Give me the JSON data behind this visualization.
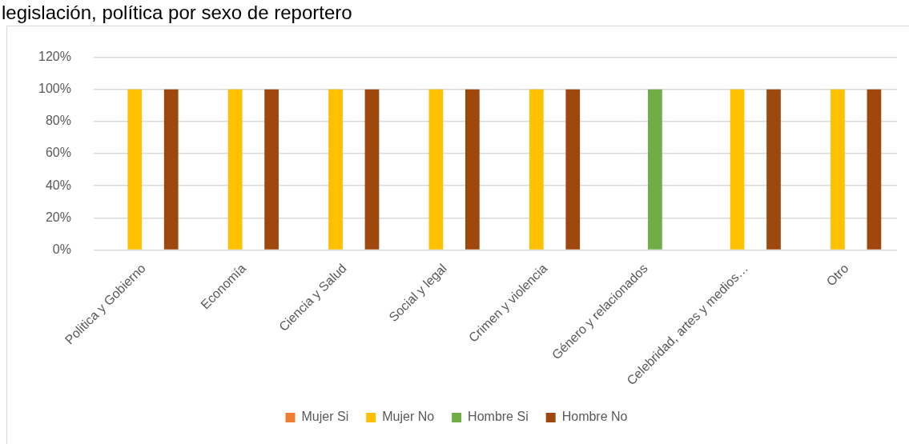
{
  "chart_data": {
    "type": "bar",
    "title": "legislación, política por sexo de reportero",
    "categories": [
      "Politica y Gobierno",
      "Economía",
      "Ciencia y Salud",
      "Social y legal",
      "Crimen y violencia",
      "Género y relacionados",
      "Celebridad, artes y medios…",
      "Otro"
    ],
    "series": [
      {
        "name": "Mujer Si",
        "color": "#ed7d31",
        "values": [
          0,
          0,
          0,
          0,
          0,
          0,
          0,
          0
        ]
      },
      {
        "name": "Mujer No",
        "color": "#ffc000",
        "values": [
          100,
          100,
          100,
          100,
          100,
          0,
          100,
          100
        ]
      },
      {
        "name": "Hombre Si",
        "color": "#70ad47",
        "values": [
          0,
          0,
          0,
          0,
          0,
          100,
          0,
          0
        ]
      },
      {
        "name": "Hombre No",
        "color": "#9e480e",
        "values": [
          100,
          100,
          100,
          100,
          100,
          0,
          100,
          100
        ]
      }
    ],
    "ylim": [
      0,
      120
    ],
    "yticks": [
      {
        "value": 0,
        "label": "0%"
      },
      {
        "value": 20,
        "label": "20%"
      },
      {
        "value": 40,
        "label": "40%"
      },
      {
        "value": 60,
        "label": "60%"
      },
      {
        "value": 80,
        "label": "80%"
      },
      {
        "value": 100,
        "label": "100%"
      },
      {
        "value": 120,
        "label": "120%"
      }
    ],
    "grid": "y",
    "legend": "bottom"
  }
}
